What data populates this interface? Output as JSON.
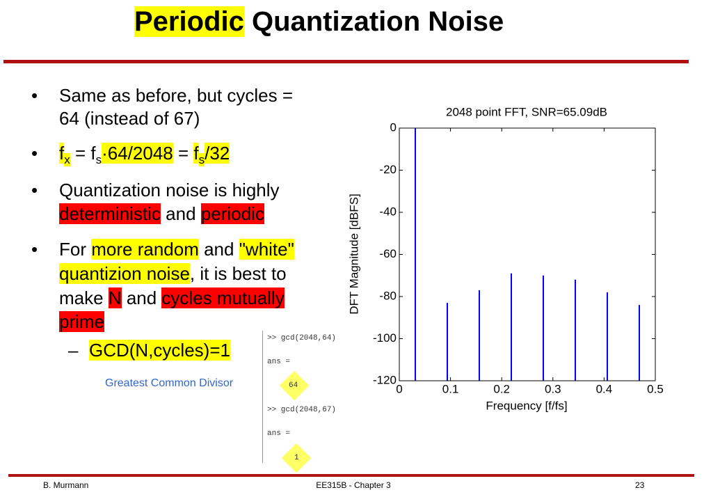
{
  "title": {
    "runs": [
      {
        "text": "Periodic",
        "hl": "#ffff00"
      },
      {
        "text": " Quantization Noise"
      }
    ]
  },
  "bullets": [
    {
      "marker": "•",
      "lines": [
        [
          {
            "text": "Same as before, but cycles ="
          }
        ],
        [
          {
            "text": "64 (instead of 67)"
          }
        ]
      ]
    },
    {
      "marker": "•",
      "lines": [
        [
          {
            "text": "f",
            "hl": "#ffff00"
          },
          {
            "text": "x",
            "sub": true,
            "hl": "#ffff00"
          },
          {
            "text": " = f"
          },
          {
            "text": "s",
            "sub": true
          },
          {
            "text": "·64/2048",
            "hl": "#ffff00"
          },
          {
            "text": " = "
          },
          {
            "text": "f",
            "hl": "#ffff00"
          },
          {
            "text": "s",
            "sub": true,
            "hl": "#ffff00"
          },
          {
            "text": "/32",
            "hl": "#ffff00"
          }
        ]
      ]
    },
    {
      "marker": "•",
      "lines": [
        [
          {
            "text": "Quantization noise is highly"
          }
        ],
        [
          {
            "text": "deterministic",
            "hl": "#ff0000"
          },
          {
            "text": " and "
          },
          {
            "text": "periodic",
            "hl": "#ff0000"
          }
        ]
      ]
    },
    {
      "marker": "•",
      "lines": [
        [
          {
            "text": "For "
          },
          {
            "text": "more random",
            "hl": "#ffff00"
          },
          {
            "text": " and "
          },
          {
            "text": "\"white\"",
            "hl": "#ffff00"
          }
        ],
        [
          {
            "text": "quantizion noise",
            "hl": "#ffff00"
          },
          {
            "text": ", it is best to"
          }
        ],
        [
          {
            "text": "make "
          },
          {
            "text": "N",
            "hl": "#ff0000"
          },
          {
            "text": " and "
          },
          {
            "text": "cycles mutually",
            "hl": "#ff0000"
          }
        ],
        [
          {
            "text": "prime",
            "hl": "#ff0000"
          }
        ]
      ]
    }
  ],
  "sub_bullet": {
    "marker": "–",
    "lines": [
      [
        {
          "text": "GCD(N,cycles)=1",
          "hl": "#ffff00"
        }
      ]
    ]
  },
  "note": "Greatest Common Divisor",
  "console": [
    ">> gcd(2048,64)",
    "ans =",
    "64",
    ">> gcd(2048,67)",
    "ans =",
    "1"
  ],
  "chart_data": {
    "type": "stem",
    "title": "2048 point FFT, SNR=65.09dB",
    "xlabel": "Frequency [f/fs]",
    "ylabel": "DFT Magnitude [dBFS]",
    "x": [
      0.03125,
      0.09375,
      0.15625,
      0.21875,
      0.28125,
      0.34375,
      0.40625,
      0.46875
    ],
    "values": [
      0,
      -83,
      -77,
      -69,
      -70,
      -72,
      -78,
      -84
    ],
    "color": "#0000ff",
    "xlim": [
      0,
      0.5
    ],
    "ylim": [
      -120,
      0
    ],
    "xticks": [
      0,
      0.1,
      0.2,
      0.3,
      0.4,
      0.5
    ],
    "yticks": [
      0,
      -20,
      -40,
      -60,
      -80,
      -100,
      -120
    ],
    "grid": false
  },
  "footer": {
    "left": "B. Murmann",
    "center": "EE315B - Chapter 3",
    "right": "23"
  }
}
